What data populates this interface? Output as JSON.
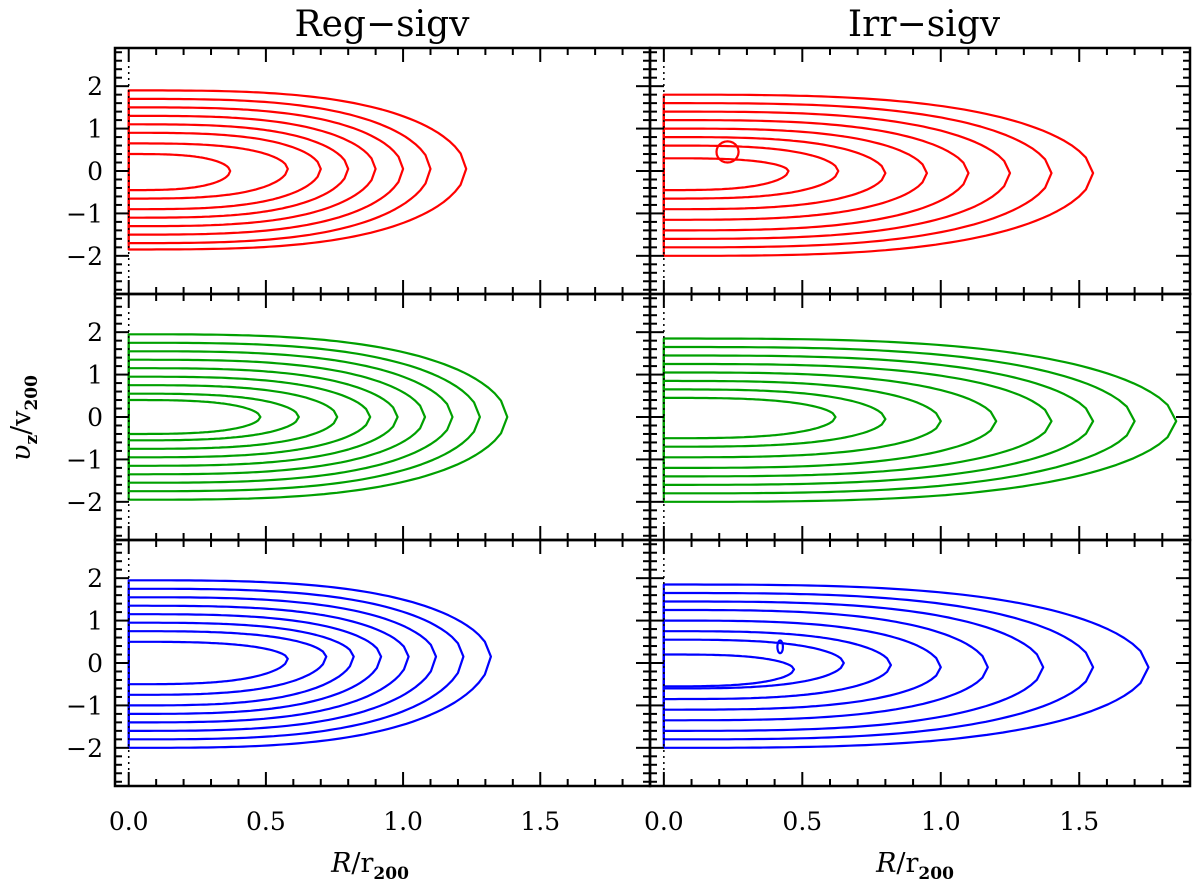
{
  "chart_data": {
    "type": "contour",
    "column_titles": [
      "Reg−sigv",
      "Irr−sigv"
    ],
    "xlabel": {
      "main": "R",
      "sep": "/r",
      "sub": "200"
    },
    "ylabel": {
      "main": "υ",
      "msub": "z",
      "sep": "/v",
      "sub": "200"
    },
    "xlim": [
      -0.05,
      1.9
    ],
    "ylim": [
      -2.9,
      2.9
    ],
    "xticks": [
      0.0,
      0.5,
      1.0,
      1.5
    ],
    "xtick_labels": [
      "0.0",
      "0.5",
      "1.0",
      "1.5"
    ],
    "yticks": [
      2,
      1,
      0,
      -1,
      -2
    ],
    "ytick_labels": [
      "2",
      "1",
      "0",
      "−1",
      "−2"
    ],
    "reference_line_x": 0.0,
    "rows": [
      {
        "color": "#ff0000"
      },
      {
        "color": "#00a000"
      },
      {
        "color": "#0000ff"
      }
    ],
    "panels": [
      {
        "row": 0,
        "col": 0,
        "levels": [
          {
            "xmax": 1.23,
            "vmax": 1.9,
            "vmin": -1.85,
            "yc": 0.05
          },
          {
            "xmax": 1.1,
            "vmax": 1.7,
            "vmin": -1.7,
            "yc": 0.05
          },
          {
            "xmax": 1.0,
            "vmax": 1.5,
            "vmin": -1.5,
            "yc": 0.05
          },
          {
            "xmax": 0.9,
            "vmax": 1.3,
            "vmin": -1.3,
            "yc": 0.05
          },
          {
            "xmax": 0.8,
            "vmax": 1.1,
            "vmin": -1.1,
            "yc": 0.05
          },
          {
            "xmax": 0.7,
            "vmax": 0.9,
            "vmin": -0.9,
            "yc": 0.05
          },
          {
            "xmax": 0.58,
            "vmax": 0.65,
            "vmin": -0.65,
            "yc": 0.05
          },
          {
            "xmax": 0.37,
            "vmax": 0.4,
            "vmin": -0.45,
            "yc": 0.0
          }
        ]
      },
      {
        "row": 0,
        "col": 1,
        "levels": [
          {
            "xmax": 1.55,
            "vmax": 1.8,
            "vmin": -2.0,
            "yc": -0.05
          },
          {
            "xmax": 1.4,
            "vmax": 1.6,
            "vmin": -1.8,
            "yc": -0.05
          },
          {
            "xmax": 1.25,
            "vmax": 1.4,
            "vmin": -1.6,
            "yc": -0.05
          },
          {
            "xmax": 1.1,
            "vmax": 1.2,
            "vmin": -1.4,
            "yc": -0.05
          },
          {
            "xmax": 0.95,
            "vmax": 1.0,
            "vmin": -1.15,
            "yc": -0.05
          },
          {
            "xmax": 0.8,
            "vmax": 0.8,
            "vmin": -0.9,
            "yc": -0.05
          },
          {
            "xmax": 0.63,
            "vmax": 0.6,
            "vmin": -0.65,
            "yc": 0.0
          },
          {
            "xmax": 0.45,
            "vmax": 0.3,
            "vmin": -0.45,
            "yc": 0.0
          },
          {
            "cx": 0.23,
            "cy": 0.45,
            "rx": 0.04,
            "ry": 0.25
          }
        ]
      },
      {
        "row": 1,
        "col": 0,
        "levels": [
          {
            "xmax": 1.38,
            "vmax": 1.95,
            "vmin": -1.95,
            "yc": 0.0
          },
          {
            "xmax": 1.28,
            "vmax": 1.75,
            "vmin": -1.75,
            "yc": 0.0
          },
          {
            "xmax": 1.18,
            "vmax": 1.55,
            "vmin": -1.55,
            "yc": 0.0
          },
          {
            "xmax": 1.08,
            "vmax": 1.35,
            "vmin": -1.35,
            "yc": 0.0
          },
          {
            "xmax": 0.98,
            "vmax": 1.15,
            "vmin": -1.15,
            "yc": 0.0
          },
          {
            "xmax": 0.88,
            "vmax": 0.95,
            "vmin": -0.95,
            "yc": 0.0
          },
          {
            "xmax": 0.76,
            "vmax": 0.75,
            "vmin": -0.75,
            "yc": 0.0
          },
          {
            "xmax": 0.62,
            "vmax": 0.55,
            "vmin": -0.55,
            "yc": 0.0
          },
          {
            "xmax": 0.48,
            "vmax": 0.4,
            "vmin": -0.4,
            "yc": 0.0
          }
        ]
      },
      {
        "row": 1,
        "col": 1,
        "levels": [
          {
            "xmax": 1.85,
            "vmax": 1.85,
            "vmin": -2.0,
            "yc": -0.1
          },
          {
            "xmax": 1.7,
            "vmax": 1.65,
            "vmin": -1.8,
            "yc": -0.1
          },
          {
            "xmax": 1.55,
            "vmax": 1.45,
            "vmin": -1.6,
            "yc": -0.1
          },
          {
            "xmax": 1.4,
            "vmax": 1.25,
            "vmin": -1.4,
            "yc": -0.1
          },
          {
            "xmax": 1.2,
            "vmax": 1.05,
            "vmin": -1.2,
            "yc": -0.1
          },
          {
            "xmax": 1.0,
            "vmax": 0.85,
            "vmin": -0.95,
            "yc": -0.1
          },
          {
            "xmax": 0.8,
            "vmax": 0.65,
            "vmin": -0.7,
            "yc": -0.05
          },
          {
            "xmax": 0.62,
            "vmax": 0.45,
            "vmin": -0.5,
            "yc": 0.0
          }
        ]
      },
      {
        "row": 2,
        "col": 0,
        "levels": [
          {
            "xmax": 1.32,
            "vmax": 1.95,
            "vmin": -2.0,
            "yc": 0.15
          },
          {
            "xmax": 1.22,
            "vmax": 1.75,
            "vmin": -1.8,
            "yc": 0.15
          },
          {
            "xmax": 1.12,
            "vmax": 1.55,
            "vmin": -1.6,
            "yc": 0.15
          },
          {
            "xmax": 1.02,
            "vmax": 1.35,
            "vmin": -1.4,
            "yc": 0.15
          },
          {
            "xmax": 0.92,
            "vmax": 1.15,
            "vmin": -1.2,
            "yc": 0.15
          },
          {
            "xmax": 0.82,
            "vmax": 0.95,
            "vmin": -1.0,
            "yc": 0.15
          },
          {
            "xmax": 0.72,
            "vmax": 0.75,
            "vmin": -0.75,
            "yc": 0.15
          },
          {
            "xmax": 0.58,
            "vmax": 0.5,
            "vmin": -0.5,
            "yc": 0.1
          }
        ]
      },
      {
        "row": 2,
        "col": 1,
        "levels": [
          {
            "xmax": 1.75,
            "vmax": 1.85,
            "vmin": -2.0,
            "yc": -0.1
          },
          {
            "xmax": 1.55,
            "vmax": 1.65,
            "vmin": -1.8,
            "yc": -0.1
          },
          {
            "xmax": 1.37,
            "vmax": 1.45,
            "vmin": -1.6,
            "yc": -0.1
          },
          {
            "xmax": 1.17,
            "vmax": 1.25,
            "vmin": -1.35,
            "yc": -0.1
          },
          {
            "xmax": 1.0,
            "vmax": 1.0,
            "vmin": -1.1,
            "yc": -0.1
          },
          {
            "xmax": 0.82,
            "vmax": 0.75,
            "vmin": -0.85,
            "yc": -0.05
          },
          {
            "xmax": 0.65,
            "vmax": 0.55,
            "vmin": -0.6,
            "yc": 0.0
          },
          {
            "xmax": 0.47,
            "vmax": 0.2,
            "vmin": -0.55,
            "yc": -0.15
          },
          {
            "cx": 0.42,
            "cy": 0.38,
            "rx": 0.01,
            "ry": 0.15
          }
        ]
      }
    ]
  }
}
